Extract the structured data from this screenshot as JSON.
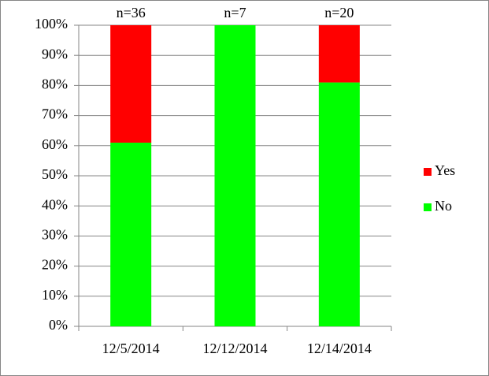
{
  "chart_data": {
    "type": "stacked_bar",
    "categories": [
      "12/5/2014",
      "12/12/2014",
      "12/14/2014"
    ],
    "series": [
      {
        "name": "No",
        "color": "#00ff00",
        "values": [
          61,
          100,
          81
        ]
      },
      {
        "name": "Yes",
        "color": "#ff0000",
        "values": [
          39,
          0,
          19
        ]
      }
    ],
    "annotations": [
      "n=36",
      "n=7",
      "n=20"
    ],
    "ylim": [
      0,
      100
    ],
    "yticks": [
      {
        "value": 0,
        "label": "0%"
      },
      {
        "value": 10,
        "label": "10%"
      },
      {
        "value": 20,
        "label": "20%"
      },
      {
        "value": 30,
        "label": "30%"
      },
      {
        "value": 40,
        "label": "40%"
      },
      {
        "value": 50,
        "label": "50%"
      },
      {
        "value": 60,
        "label": "60%"
      },
      {
        "value": 70,
        "label": "70%"
      },
      {
        "value": 80,
        "label": "80%"
      },
      {
        "value": 90,
        "label": "90%"
      },
      {
        "value": 100,
        "label": "100%"
      }
    ],
    "grid": true,
    "legend": "right"
  }
}
